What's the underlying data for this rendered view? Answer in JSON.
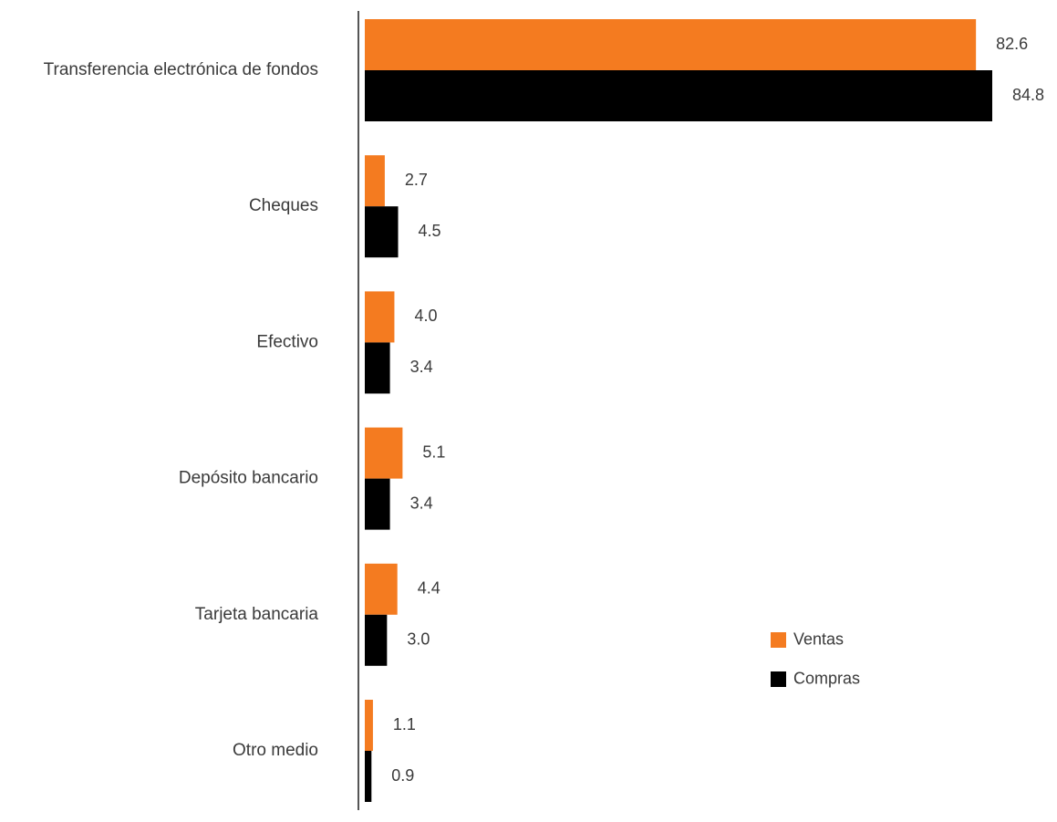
{
  "chart_data": {
    "type": "bar",
    "orientation": "horizontal",
    "categories": [
      "Transferencia electrónica de fondos",
      "Cheques",
      "Efectivo",
      "Depósito bancario",
      "Tarjeta bancaria",
      "Otro medio"
    ],
    "series": [
      {
        "name": "Ventas",
        "color": "#f47b20",
        "values": [
          82.6,
          2.7,
          4.0,
          5.1,
          4.4,
          1.1
        ]
      },
      {
        "name": "Compras",
        "color": "#000000",
        "values": [
          84.8,
          4.5,
          3.4,
          3.4,
          3.0,
          0.9
        ]
      }
    ],
    "value_labels": {
      "Ventas": [
        "82.6",
        "2.7",
        "4.0",
        "5.1",
        "4.4",
        "1.1"
      ],
      "Compras": [
        "84.8",
        "4.5",
        "3.4",
        "3.4",
        "3.0",
        "0.9"
      ]
    },
    "xlim": [
      0,
      84.8
    ],
    "grid": false,
    "legend": {
      "placement": "bottom-right"
    }
  }
}
